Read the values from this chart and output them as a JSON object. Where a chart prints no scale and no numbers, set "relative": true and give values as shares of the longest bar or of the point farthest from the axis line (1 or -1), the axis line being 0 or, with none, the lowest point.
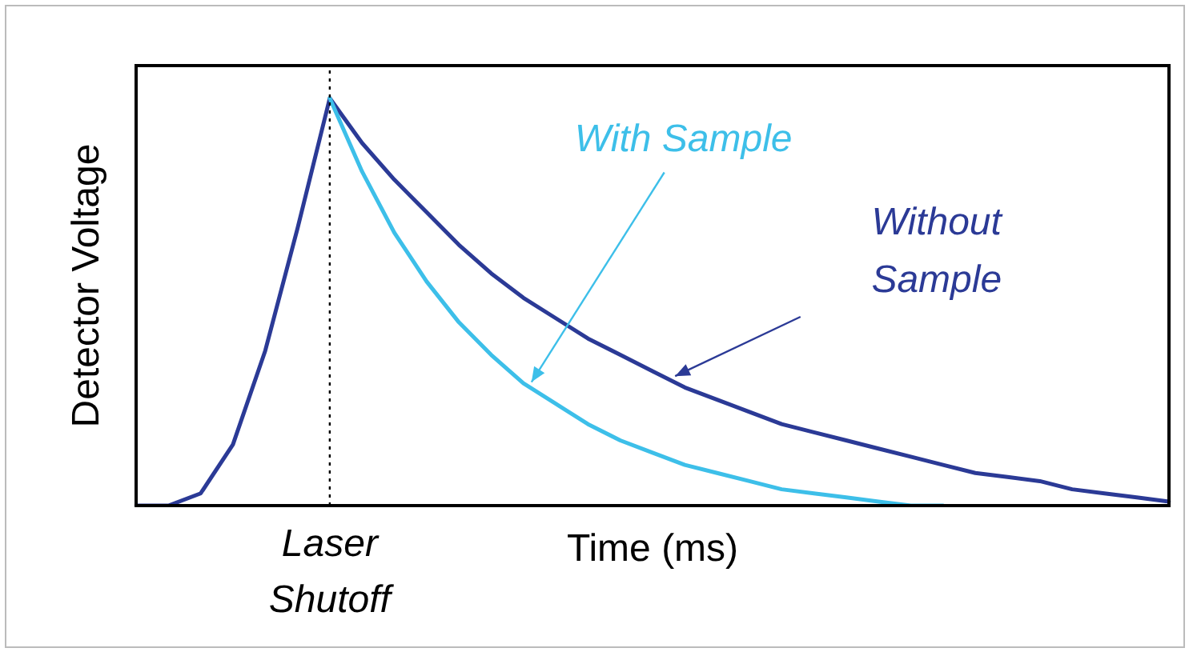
{
  "chart_data": {
    "type": "line",
    "relative": true,
    "xlabel": "Time (ms)",
    "ylabel": "Detector Voltage",
    "line_style": "solid",
    "annotations": [
      "Laser Shutoff"
    ],
    "categories": [
      null,
      null,
      null,
      null,
      null,
      null,
      null,
      null,
      null,
      null,
      null,
      null,
      null,
      null,
      null,
      null,
      null,
      null,
      null,
      null,
      null,
      null,
      null,
      null,
      null,
      null,
      null,
      null,
      null,
      null,
      null,
      null,
      null
    ],
    "series": [
      {
        "name": "With Sample",
        "color": "#3dbfe9",
        "values": [
          null,
          null,
          null,
          null,
          null,
          null,
          1,
          0.82,
          0.67,
          0.55,
          0.45,
          0.37,
          0.3,
          0.25,
          0.2,
          0.16,
          0.13,
          0.1,
          0.08,
          0.06,
          0.04,
          0.03,
          0.02,
          0.01,
          0,
          0,
          null,
          null,
          null,
          null,
          null,
          null,
          null
        ]
      },
      {
        "name": "Without Sample",
        "color": "#2b3a96",
        "values": [
          0,
          0,
          0.03,
          0.15,
          0.38,
          0.68,
          1,
          0.89,
          0.8,
          0.72,
          0.64,
          0.57,
          0.51,
          0.46,
          0.41,
          0.37,
          0.33,
          0.29,
          0.26,
          0.23,
          0.2,
          0.18,
          0.16,
          0.14,
          0.12,
          0.1,
          0.08,
          0.07,
          0.06,
          0.04,
          0.03,
          0.02,
          0.01
        ]
      }
    ]
  }
}
